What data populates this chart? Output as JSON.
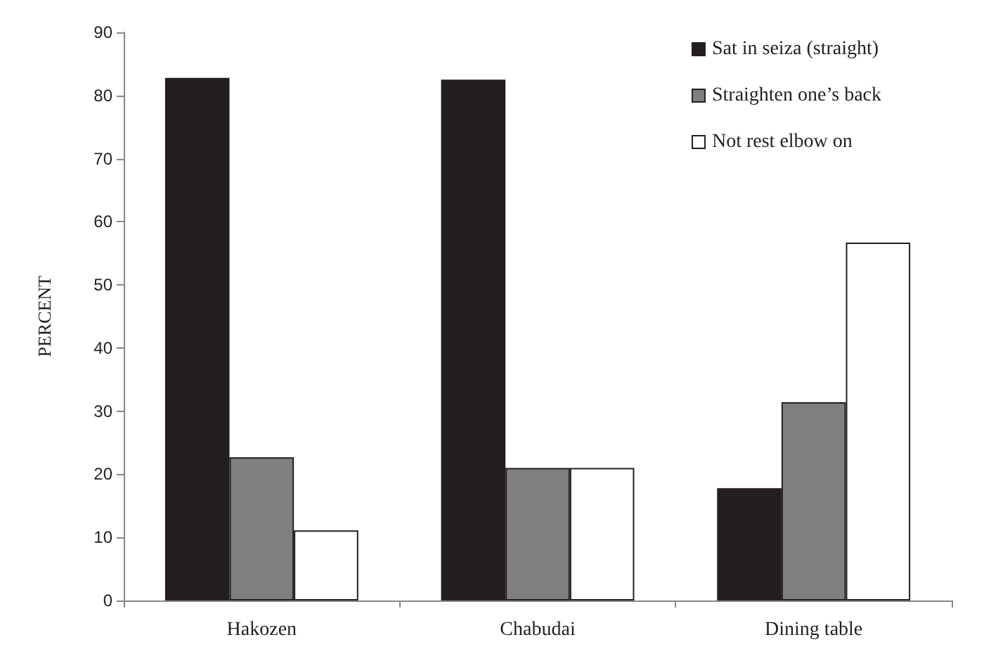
{
  "chart_data": {
    "type": "bar",
    "ylabel": "PERCENT",
    "categories": [
      "Hakozen",
      "Chabudai",
      "Dining table"
    ],
    "series": [
      {
        "name": "Sat in seiza (straight)",
        "color": "#231f20",
        "values": [
          82.8,
          82.5,
          17.8
        ]
      },
      {
        "name": "Straighten one’s back",
        "color": "#808080",
        "values": [
          22.7,
          21.0,
          31.4
        ]
      },
      {
        "name": "Not rest elbow on",
        "color": "#ffffff",
        "values": [
          11.1,
          21.0,
          56.7
        ]
      }
    ],
    "ylim": [
      0,
      90
    ],
    "yticks": [
      0,
      10,
      20,
      30,
      40,
      50,
      60,
      70,
      80,
      90
    ],
    "grid": false,
    "legend": "top right"
  }
}
